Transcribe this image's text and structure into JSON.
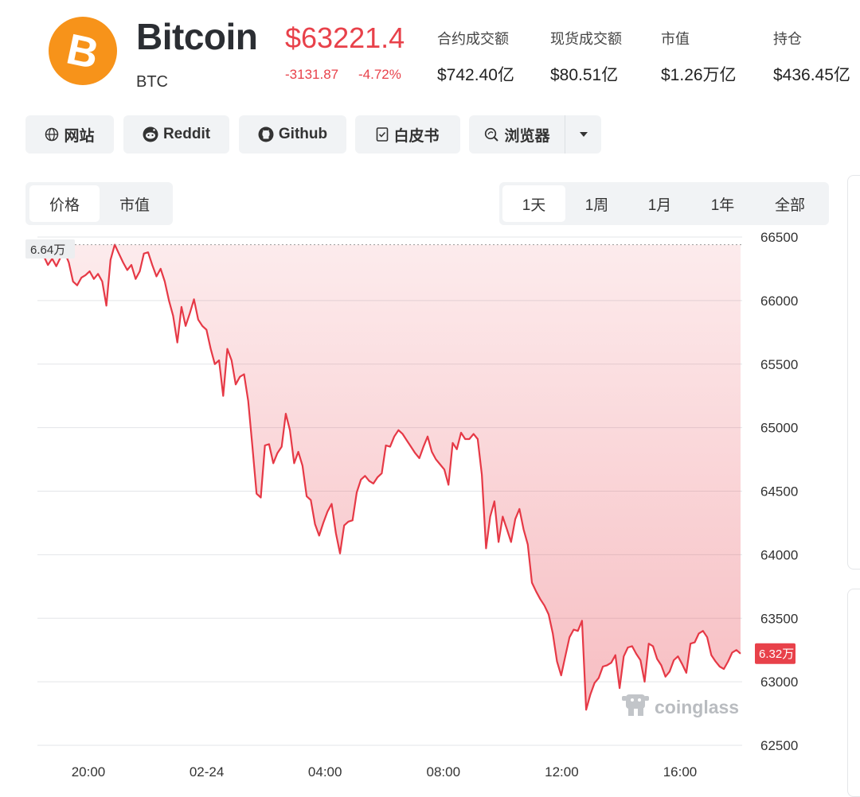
{
  "coin": {
    "name": "Bitcoin",
    "symbol": "BTC",
    "price": "$63221.4",
    "change_abs": "-3131.87",
    "change_pct": "-4.72%",
    "logo_letter": "B",
    "logo_color": "#f7931a"
  },
  "stats": [
    {
      "label": "合约成交额",
      "value": "$742.40亿"
    },
    {
      "label": "现货成交额",
      "value": "$80.51亿"
    },
    {
      "label": "市值",
      "value": "$1.26万亿"
    },
    {
      "label": "持仓",
      "value": "$436.45亿"
    }
  ],
  "links": [
    {
      "label": "网站",
      "icon": "globe-icon"
    },
    {
      "label": "Reddit",
      "icon": "reddit-icon"
    },
    {
      "label": "Github",
      "icon": "github-icon"
    },
    {
      "label": "白皮书",
      "icon": "document-icon"
    },
    {
      "label": "浏览器",
      "icon": "explorer-icon"
    }
  ],
  "metric_tabs": [
    {
      "label": "价格",
      "active": true
    },
    {
      "label": "市值",
      "active": false
    }
  ],
  "range_tabs": [
    {
      "label": "1天",
      "active": true
    },
    {
      "label": "1周",
      "active": false
    },
    {
      "label": "1月",
      "active": false
    },
    {
      "label": "1年",
      "active": false
    },
    {
      "label": "全部",
      "active": false
    }
  ],
  "colors": {
    "negative": "#e8414a",
    "line": "#e63946",
    "grid": "#e3e5e8"
  },
  "chart_data": {
    "type": "area",
    "y_ticks": [
      66500,
      66000,
      65500,
      65000,
      64500,
      64000,
      63500,
      63000,
      62500
    ],
    "ylim": [
      62500,
      66500
    ],
    "x_ticks": [
      "20:00",
      "02-24",
      "04:00",
      "08:00",
      "12:00",
      "16:00"
    ],
    "high_label": "6.64万",
    "high_value": 66440,
    "current_label": "6.32万",
    "current_value": 63221.4,
    "watermark": "coinglass",
    "grid": true,
    "series": [
      {
        "values": [
          66350,
          66280,
          66330,
          66270,
          66340,
          66380,
          66300,
          66150,
          66120,
          66180,
          66200,
          66230,
          66170,
          66210,
          66150,
          65960,
          66320,
          66440,
          66370,
          66300,
          66240,
          66280,
          66170,
          66230,
          66370,
          66380,
          66280,
          66190,
          66250,
          66150,
          66000,
          65880,
          65670,
          65950,
          65800,
          65900,
          66010,
          65850,
          65800,
          65770,
          65620,
          65500,
          65530,
          65250,
          65620,
          65530,
          65340,
          65400,
          65420,
          65210,
          64850,
          64480,
          64450,
          64860,
          64870,
          64720,
          64800,
          64850,
          65110,
          64980,
          64720,
          64810,
          64700,
          64460,
          64430,
          64240,
          64150,
          64250,
          64340,
          64400,
          64170,
          64010,
          64230,
          64260,
          64270,
          64490,
          64590,
          64620,
          64580,
          64560,
          64610,
          64640,
          64860,
          64850,
          64930,
          64980,
          64950,
          64900,
          64850,
          64800,
          64760,
          64850,
          64930,
          64810,
          64750,
          64710,
          64670,
          64550,
          64880,
          64830,
          64960,
          64910,
          64910,
          64950,
          64910,
          64630,
          64050,
          64300,
          64420,
          64100,
          64300,
          64200,
          64100,
          64280,
          64360,
          64200,
          64080,
          63780,
          63710,
          63650,
          63600,
          63530,
          63380,
          63160,
          63050,
          63200,
          63350,
          63410,
          63400,
          63480,
          62780,
          62900,
          62990,
          63030,
          63120,
          63130,
          63150,
          63210,
          62950,
          63200,
          63270,
          63280,
          63220,
          63170,
          63000,
          63300,
          63280,
          63180,
          63130,
          63040,
          63080,
          63170,
          63200,
          63140,
          63070,
          63300,
          63310,
          63380,
          63400,
          63350,
          63210,
          63160,
          63120,
          63100,
          63160,
          63230,
          63250,
          63221
        ]
      }
    ]
  }
}
